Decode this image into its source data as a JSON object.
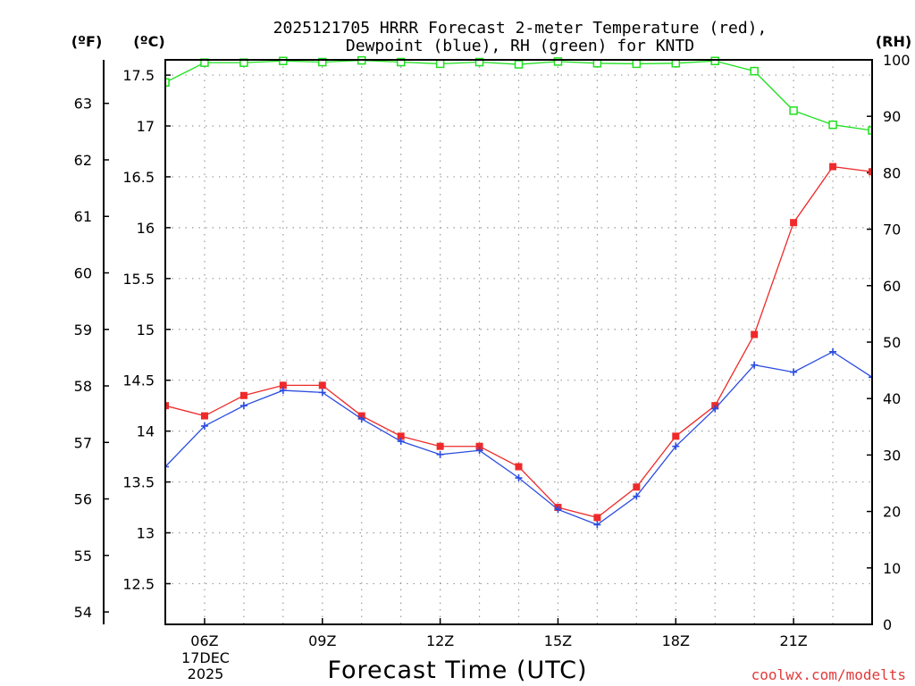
{
  "chart_data": {
    "type": "line",
    "title_line1": "2025121705 HRRR Forecast 2-meter Temperature (red),",
    "title_line2": "Dewpoint (blue), RH (green) for KNTD",
    "xlabel": "Forecast Time (UTC)",
    "watermark": "coolwx.com/modelts",
    "left_axis_f_label": "(ºF)",
    "left_axis_c_label": "(ºC)",
    "right_axis_label": "(RH)",
    "date_label_line1": "17DEC",
    "date_label_line2": "2025",
    "x_range_hours": [
      5,
      23
    ],
    "c_range": [
      12.1,
      17.65
    ],
    "rh_range": [
      0,
      100
    ],
    "x_ticks": [
      {
        "hour": 6,
        "label": "06Z"
      },
      {
        "hour": 9,
        "label": "09Z"
      },
      {
        "hour": 12,
        "label": "12Z"
      },
      {
        "hour": 15,
        "label": "15Z"
      },
      {
        "hour": 18,
        "label": "18Z"
      },
      {
        "hour": 21,
        "label": "21Z"
      }
    ],
    "c_ticks": [
      12.5,
      13,
      13.5,
      14,
      14.5,
      15,
      15.5,
      16,
      16.5,
      17,
      17.5
    ],
    "f_ticks": [
      54,
      55,
      56,
      57,
      58,
      59,
      60,
      61,
      62,
      63
    ],
    "rh_ticks": [
      0,
      10,
      20,
      30,
      40,
      50,
      60,
      70,
      80,
      90,
      100
    ],
    "hours": [
      5,
      6,
      7,
      8,
      9,
      10,
      11,
      12,
      13,
      14,
      15,
      16,
      17,
      18,
      19,
      20,
      21,
      22,
      23
    ],
    "series": [
      {
        "name": "Temperature",
        "unit": "C",
        "color": "#ee2a2a",
        "marker": "filled-square",
        "values": [
          14.25,
          14.15,
          14.35,
          14.45,
          14.45,
          14.15,
          13.95,
          13.85,
          13.85,
          13.65,
          13.25,
          13.15,
          13.45,
          13.95,
          14.25,
          14.95,
          16.05,
          16.6,
          16.55
        ]
      },
      {
        "name": "Dewpoint",
        "unit": "C",
        "color": "#2a4ce0",
        "marker": "plus",
        "values": [
          13.65,
          14.05,
          14.25,
          14.4,
          14.38,
          14.12,
          13.9,
          13.77,
          13.81,
          13.54,
          13.23,
          13.08,
          13.36,
          13.85,
          14.22,
          14.65,
          14.58,
          14.78,
          14.53
        ]
      },
      {
        "name": "RH",
        "unit": "%",
        "color": "#1ee01e",
        "marker": "open-square",
        "values": [
          96,
          99.5,
          99.5,
          99.8,
          99.6,
          99.9,
          99.6,
          99.3,
          99.6,
          99.2,
          99.7,
          99.4,
          99.3,
          99.4,
          99.8,
          98,
          91,
          88.5,
          87.5
        ]
      }
    ]
  }
}
